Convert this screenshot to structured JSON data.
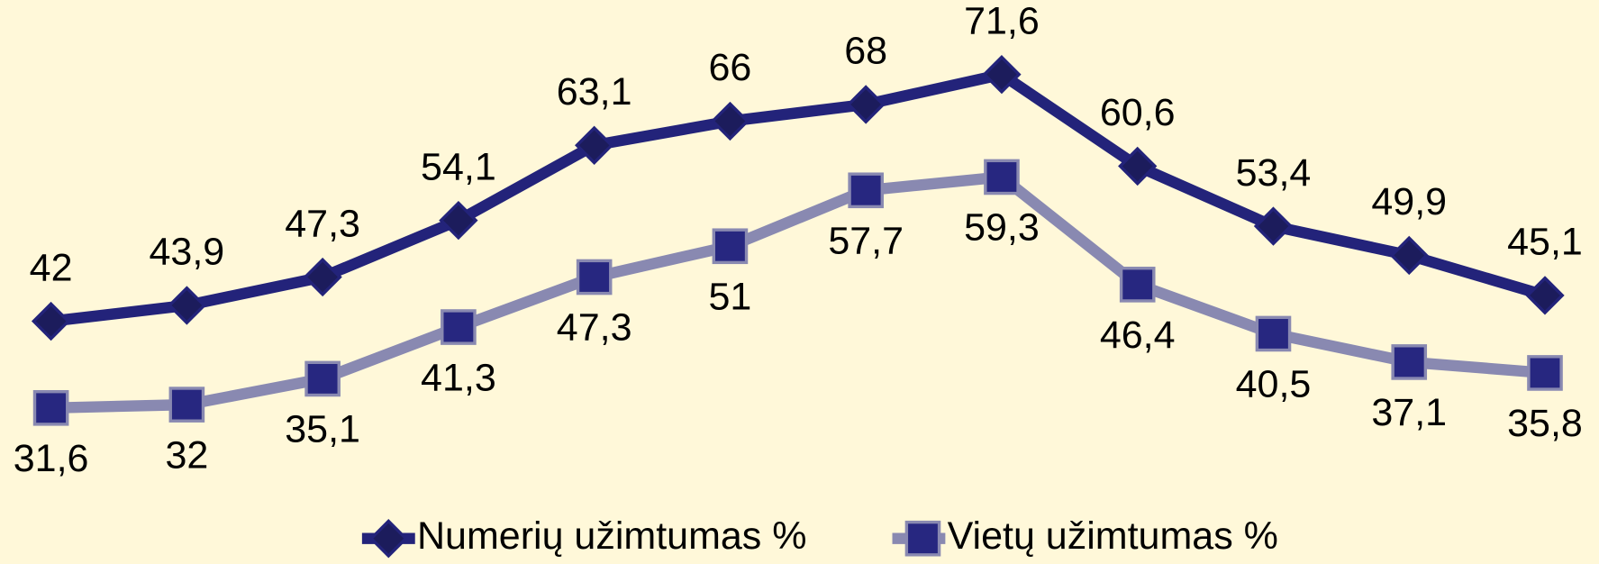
{
  "chart_data": {
    "type": "line",
    "series": [
      {
        "name": "Numerių užimtumas %",
        "color": "#23237a",
        "marker": "diamond",
        "values": [
          42,
          43.9,
          47.3,
          54.1,
          63.1,
          66,
          68,
          71.6,
          60.6,
          53.4,
          49.9,
          45.1
        ],
        "value_labels": [
          "42",
          "43,9",
          "47,3",
          "54,1",
          "63,1",
          "66",
          "68",
          "71,6",
          "60,6",
          "53,4",
          "49,9",
          "45,1"
        ]
      },
      {
        "name": "Vietų užimtumas %",
        "color": "#8989b1",
        "marker": "square",
        "values": [
          31.6,
          32,
          35.1,
          41.3,
          47.3,
          51,
          57.7,
          59.3,
          46.4,
          40.5,
          37.1,
          35.8
        ],
        "value_labels": [
          "31,6",
          "32",
          "35,1",
          "41,3",
          "47,3",
          "51",
          "57,7",
          "59,3",
          "46,4",
          "40,5",
          "37,1",
          "35,8"
        ]
      }
    ],
    "legend": "bottom"
  }
}
